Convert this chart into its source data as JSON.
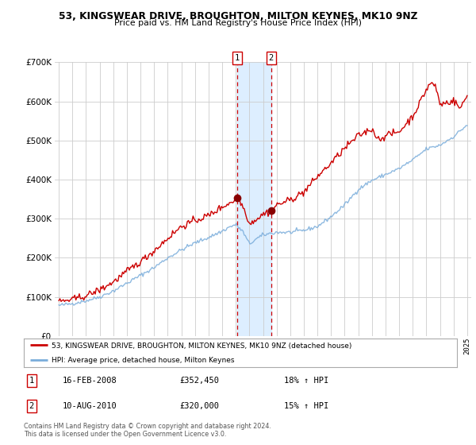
{
  "title": "53, KINGSWEAR DRIVE, BROUGHTON, MILTON KEYNES, MK10 9NZ",
  "subtitle": "Price paid vs. HM Land Registry's House Price Index (HPI)",
  "legend_line1": "53, KINGSWEAR DRIVE, BROUGHTON, MILTON KEYNES, MK10 9NZ (detached house)",
  "legend_line2": "HPI: Average price, detached house, Milton Keynes",
  "transaction1_date": "16-FEB-2008",
  "transaction1_price": 352450,
  "transaction1_hpi": "18% ↑ HPI",
  "transaction2_date": "10-AUG-2010",
  "transaction2_price": 320000,
  "transaction2_hpi": "15% ↑ HPI",
  "footer": "Contains HM Land Registry data © Crown copyright and database right 2024.\nThis data is licensed under the Open Government Licence v3.0.",
  "red_color": "#cc0000",
  "blue_color": "#7aaddb",
  "shade_color": "#ddeeff",
  "vline_color": "#cc0000",
  "background_color": "#ffffff",
  "grid_color": "#cccccc",
  "ylim": [
    0,
    700000
  ],
  "start_year": 1995,
  "end_year": 2025,
  "t1_year": 2008.125,
  "t2_year": 2010.6
}
